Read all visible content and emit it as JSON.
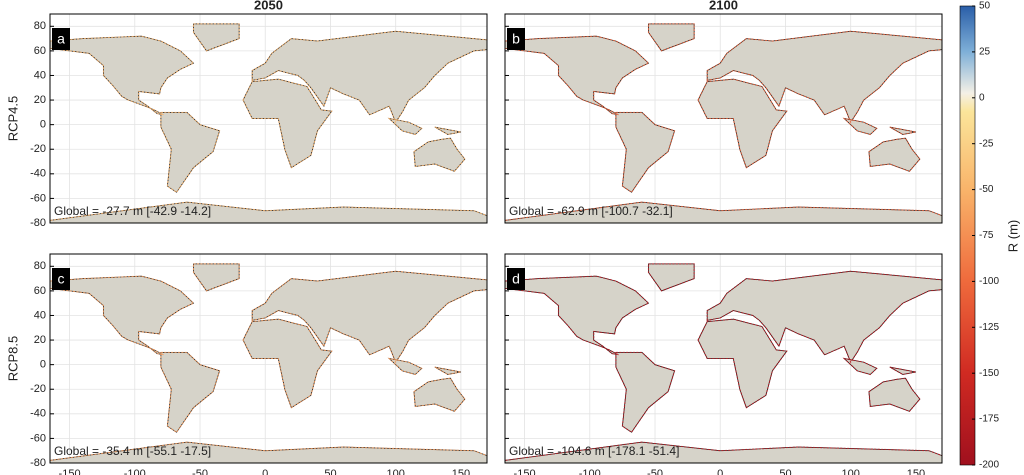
{
  "columns": [
    "2050",
    "2100"
  ],
  "rows": [
    "RCP4.5",
    "RCP8.5"
  ],
  "panels": [
    {
      "letter": "a",
      "global": "Global = -27.7 m [-42.9 -14.2]",
      "color": "#f7b36c"
    },
    {
      "letter": "b",
      "global": "Global = -62.9 m [-100.7 -32.1]",
      "color": "#e5603a"
    },
    {
      "letter": "c",
      "global": "Global = -35.4 m [-55.1 -17.5]",
      "color": "#f39a5c"
    },
    {
      "letter": "d",
      "global": "Global = -104.6 m [-178.1 -51.4]",
      "color": "#b81a22"
    }
  ],
  "map": {
    "xlim": [
      -165,
      170
    ],
    "ylim": [
      -80,
      90
    ],
    "xticks": [
      -150,
      -100,
      -50,
      0,
      50,
      100,
      150
    ],
    "yticks": [
      80,
      60,
      40,
      20,
      0,
      -20,
      -40,
      -60,
      -80
    ]
  },
  "colorbar": {
    "label": "R (m)",
    "lim": [
      -200,
      50
    ],
    "ticks": [
      50,
      25,
      0,
      -25,
      -50,
      -75,
      -100,
      -125,
      -150,
      -175,
      -200
    ]
  }
}
